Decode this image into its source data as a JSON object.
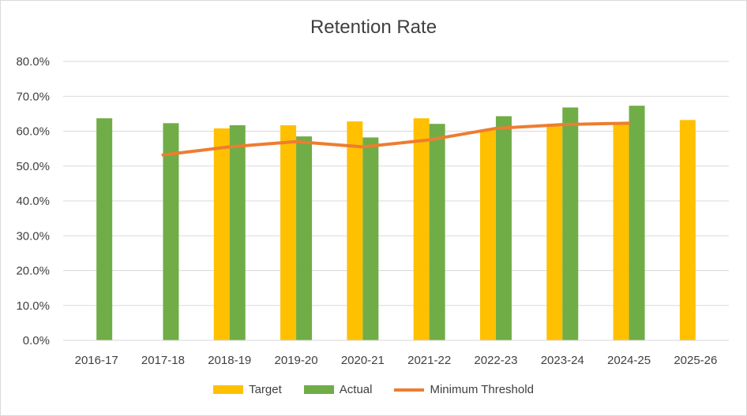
{
  "colors": {
    "target": "#FFC000",
    "actual": "#70AD47",
    "threshold": "#ED7D31",
    "grid": "#d9d9d9",
    "text": "#404040"
  },
  "chart_data": {
    "type": "bar",
    "title": "Retention Rate",
    "xlabel": "",
    "ylabel": "",
    "ylim": [
      0,
      80
    ],
    "yticks": [
      "0.0%",
      "10.0%",
      "20.0%",
      "30.0%",
      "40.0%",
      "50.0%",
      "60.0%",
      "70.0%",
      "80.0%"
    ],
    "grid": true,
    "legend_position": "bottom",
    "categories": [
      "2016-17",
      "2017-18",
      "2018-19",
      "2019-20",
      "2020-21",
      "2021-22",
      "2022-23",
      "2023-24",
      "2024-25",
      "2025-26"
    ],
    "series": [
      {
        "name": "Target",
        "type": "bar",
        "values": [
          null,
          null,
          60.8,
          61.7,
          62.8,
          63.7,
          60.5,
          61.5,
          62.0,
          63.2
        ]
      },
      {
        "name": "Actual",
        "type": "bar",
        "values": [
          63.7,
          62.3,
          61.7,
          58.5,
          58.2,
          62.1,
          64.3,
          66.8,
          67.3,
          null
        ]
      },
      {
        "name": "Minimum Threshold",
        "type": "line",
        "values": [
          null,
          53.2,
          55.5,
          57.0,
          55.5,
          57.5,
          60.8,
          61.9,
          62.3,
          null
        ]
      }
    ]
  }
}
